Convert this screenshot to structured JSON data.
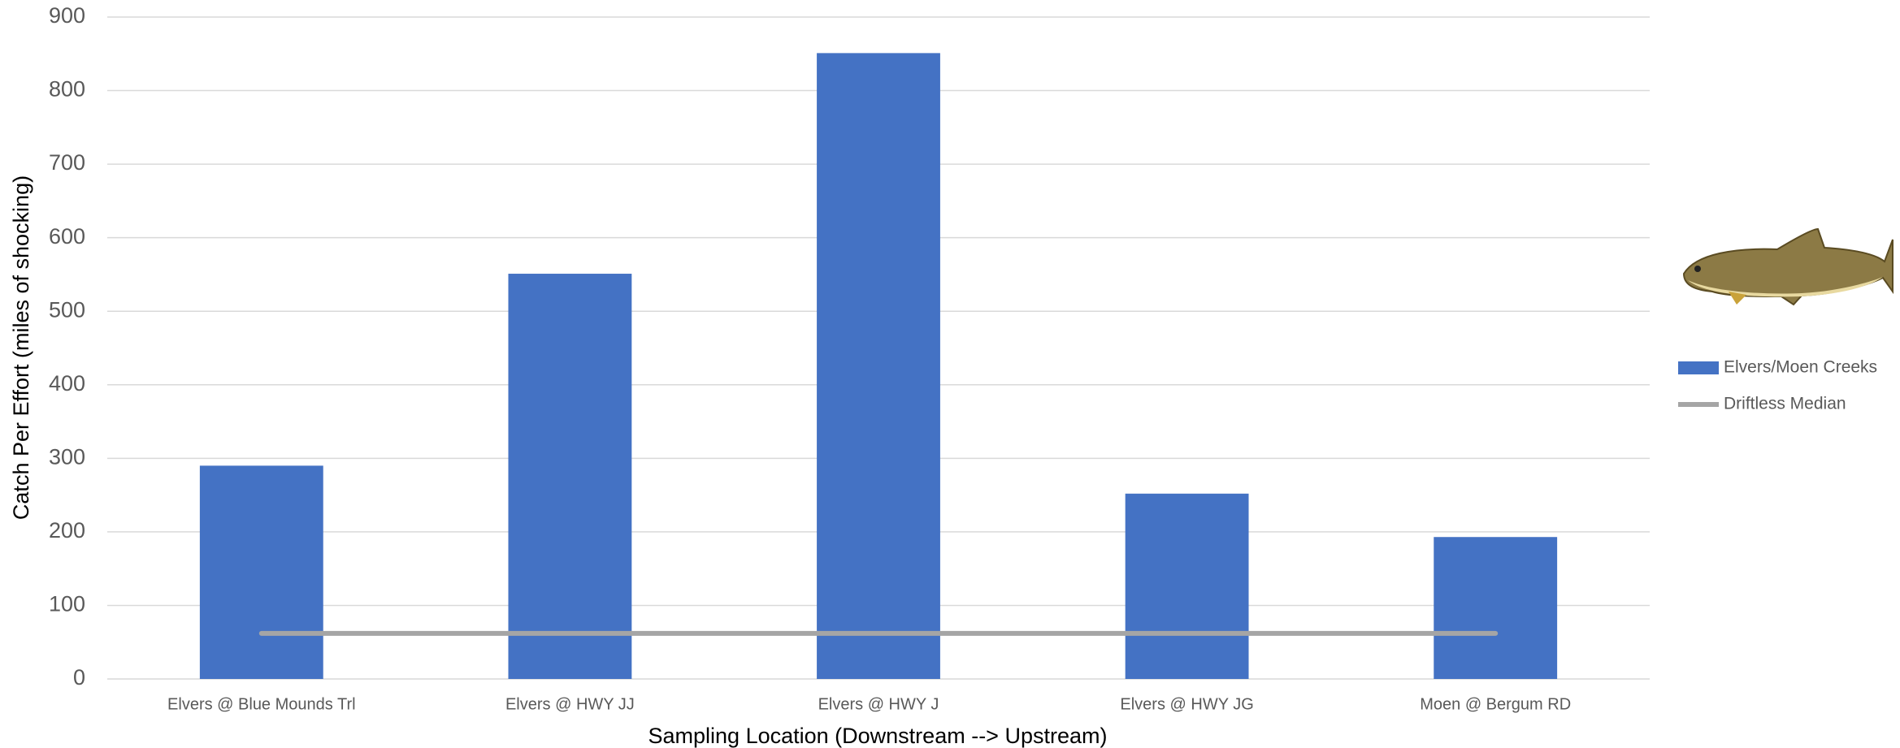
{
  "chart_data": {
    "type": "bar",
    "x_label": "Sampling Location (Downstream --> Upstream)",
    "y_label": "Catch Per Effort (miles of shocking)",
    "categories": [
      "Elvers @ Blue Mounds Trl",
      "Elvers @ HWY JJ",
      "Elvers @ HWY J",
      "Elvers @ HWY JG",
      "Moen @ Bergum RD"
    ],
    "series": [
      {
        "name": "Elvers/Moen Creeks",
        "type": "bar",
        "color": "#4472c4",
        "values": [
          290,
          551,
          851,
          252,
          193
        ]
      },
      {
        "name": "Driftless Median",
        "type": "line",
        "color": "#a5a5a5",
        "values": [
          62,
          62,
          62,
          62,
          62
        ]
      }
    ],
    "ylim": [
      0,
      900
    ],
    "yticks": [
      0,
      100,
      200,
      300,
      400,
      500,
      600,
      700,
      800,
      900
    ],
    "grid": true,
    "legend": "right"
  }
}
